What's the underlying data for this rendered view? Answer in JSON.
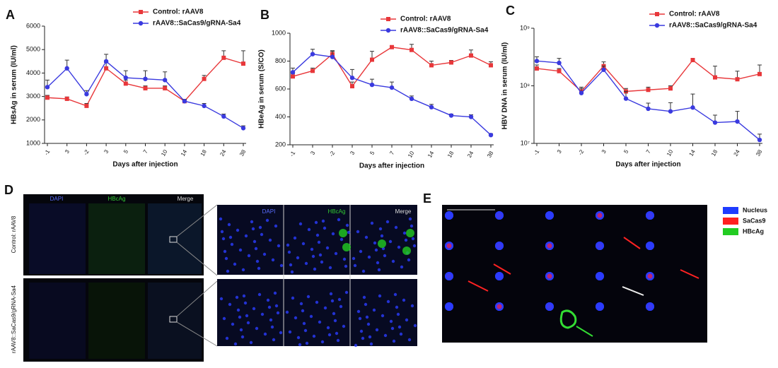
{
  "chart_data": [
    {
      "type": "line",
      "label": "A",
      "ylabel": "HBsAg in serum (IU/ml)",
      "xlabel": "Days after injection",
      "categories": [
        "-1",
        "3",
        "-2",
        "3",
        "5",
        "7",
        "10",
        "14",
        "18",
        "24",
        "38"
      ],
      "ylim": [
        1000,
        6000
      ],
      "yticks": [
        1000,
        2000,
        3000,
        4000,
        5000,
        6000
      ],
      "log_scale": false,
      "legend": "upper right",
      "series": [
        {
          "name": "Control: rAAV8",
          "color": "#e8373a",
          "marker": "square",
          "values": [
            2950,
            2900,
            2600,
            4200,
            3550,
            3350,
            3350,
            2800,
            3750,
            4650,
            4400
          ],
          "errors": [
            100,
            80,
            100,
            250,
            150,
            100,
            100,
            60,
            150,
            300,
            550
          ]
        },
        {
          "name": "rAAV8::SaCas9/gRNA-Sa4",
          "color": "#3a3adf",
          "marker": "circle",
          "values": [
            3400,
            4200,
            3100,
            4500,
            3800,
            3750,
            3700,
            2800,
            2600,
            2150,
            1650
          ],
          "errors": [
            300,
            350,
            150,
            300,
            300,
            350,
            350,
            80,
            100,
            100,
            100
          ]
        }
      ]
    },
    {
      "type": "line",
      "label": "B",
      "ylabel": "HBeAg in serum (S/CO)",
      "xlabel": "Days after injection",
      "categories": [
        "-1",
        "3",
        "-2",
        "3",
        "5",
        "7",
        "10",
        "14",
        "18",
        "24",
        "38"
      ],
      "ylim": [
        200,
        1000
      ],
      "yticks": [
        200,
        400,
        600,
        800,
        1000
      ],
      "log_scale": false,
      "legend": "upper right",
      "series": [
        {
          "name": "Control: rAAV8",
          "color": "#e8373a",
          "marker": "square",
          "values": [
            690,
            730,
            850,
            620,
            810,
            900,
            880,
            770,
            790,
            840,
            770
          ],
          "errors": [
            20,
            20,
            25,
            30,
            60,
            10,
            40,
            30,
            15,
            40,
            25
          ]
        },
        {
          "name": "rAAV8::SaCas9/gRNA-Sa4",
          "color": "#3a3adf",
          "marker": "circle",
          "values": [
            720,
            850,
            830,
            680,
            630,
            610,
            530,
            470,
            410,
            400,
            270
          ],
          "errors": [
            30,
            35,
            40,
            60,
            40,
            40,
            20,
            20,
            10,
            15,
            10
          ]
        }
      ]
    },
    {
      "type": "line",
      "label": "C",
      "ylabel": "HBV DNA in serum (IU/ml)",
      "xlabel": "Days after injection",
      "categories": [
        "-1",
        "3",
        "-2",
        "3",
        "5",
        "7",
        "10",
        "14",
        "18",
        "24",
        "38"
      ],
      "ylim": [
        10000000,
        1000000000
      ],
      "yticks": [
        {
          "value": 10000000,
          "label": "10⁷"
        },
        {
          "value": 100000000,
          "label": "10⁸"
        },
        {
          "value": 1000000000,
          "label": "10⁹"
        }
      ],
      "log_scale": true,
      "legend": "upper right",
      "series": [
        {
          "name": "Control: rAAV8",
          "color": "#e8373a",
          "marker": "square",
          "values": [
            200000000,
            180000000,
            80000000,
            220000000,
            80000000,
            85000000,
            90000000,
            280000000,
            140000000,
            130000000,
            160000000
          ],
          "errors": [
            30000000,
            20000000,
            15000000,
            40000000,
            10000000,
            10000000,
            10000000,
            20000000,
            80000000,
            50000000,
            70000000
          ]
        },
        {
          "name": "rAAV8::SaCas9/gRNA-Sa4",
          "color": "#3a3adf",
          "marker": "circle",
          "values": [
            270000000,
            250000000,
            75000000,
            190000000,
            60000000,
            40000000,
            36000000,
            42000000,
            23000000,
            24000000,
            11500000
          ],
          "errors": [
            50000000,
            50000000,
            15000000,
            30000000,
            20000000,
            10000000,
            15000000,
            30000000,
            8000000,
            12000000,
            3000000
          ]
        }
      ]
    }
  ],
  "panel_d": {
    "label": "D",
    "channels": [
      "DAPI",
      "HBcAg",
      "Merge"
    ],
    "rows": [
      "Control: rAAV8",
      "rAAV8::SaCas9/gRNA-Sa4"
    ]
  },
  "panel_e": {
    "label": "E",
    "legend": [
      {
        "name": "Nucleus",
        "color": "#1f3cff"
      },
      {
        "name": "SaCas9",
        "color": "#ff2020"
      },
      {
        "name": "HBcAg",
        "color": "#22cc22"
      }
    ]
  }
}
